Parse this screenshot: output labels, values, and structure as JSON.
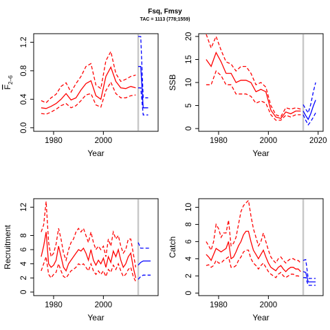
{
  "title": "Fsq, Fmsy",
  "subtitle": "TAC = 1113 (778;1559)",
  "chart_data": [
    {
      "type": "line",
      "xlabel": "Year",
      "ylabel_main": "F",
      "ylabel_sub": "2–6",
      "xlim": [
        1972,
        2022
      ],
      "ylim": [
        -0.05,
        1.32
      ],
      "xticks": [
        "1980",
        "2000"
      ],
      "yticks": [
        "0.0",
        "0.4",
        "0.8",
        "1.2"
      ],
      "vline_year": 2014,
      "colors": {
        "historical": "#ff0000",
        "projection": "#0000ff",
        "vline": "#c8c8c8"
      },
      "x": [
        1975,
        1977,
        1979,
        1981,
        1983,
        1985,
        1987,
        1989,
        1991,
        1993,
        1995,
        1997,
        1999,
        2001,
        2003,
        2005,
        2007,
        2009,
        2011,
        2013
      ],
      "median": [
        0.28,
        0.27,
        0.3,
        0.34,
        0.4,
        0.48,
        0.39,
        0.42,
        0.53,
        0.62,
        0.66,
        0.45,
        0.4,
        0.72,
        0.85,
        0.65,
        0.56,
        0.55,
        0.58,
        0.56
      ],
      "upper": [
        0.38,
        0.35,
        0.42,
        0.47,
        0.58,
        0.63,
        0.5,
        0.62,
        0.72,
        0.86,
        0.9,
        0.6,
        0.55,
        0.94,
        1.07,
        0.76,
        0.65,
        0.68,
        0.72,
        0.74
      ],
      "lower": [
        0.2,
        0.19,
        0.22,
        0.26,
        0.31,
        0.34,
        0.28,
        0.31,
        0.38,
        0.46,
        0.48,
        0.32,
        0.29,
        0.52,
        0.64,
        0.48,
        0.42,
        0.42,
        0.45,
        0.46
      ],
      "proj_x": [
        2014,
        2015,
        2016,
        2017,
        2018
      ],
      "proj_median": [
        0.86,
        0.86,
        0.28,
        0.28,
        0.28
      ],
      "proj_upper": [
        1.28,
        1.28,
        0.42,
        0.42,
        0.42
      ],
      "proj_lower": [
        0.56,
        0.56,
        0.18,
        0.18,
        0.18
      ]
    },
    {
      "type": "line",
      "xlabel": "Year",
      "ylabel": "SSB",
      "xlim": [
        1972,
        2022
      ],
      "ylim": [
        -0.6,
        20.6
      ],
      "xticks": [
        "1980",
        "2000",
        "2020"
      ],
      "yticks": [
        "0",
        "5",
        "10",
        "15",
        "20"
      ],
      "vline_year": 2014,
      "colors": {
        "historical": "#ff0000",
        "projection": "#0000ff",
        "vline": "#c8c8c8"
      },
      "x": [
        1975,
        1977,
        1979,
        1981,
        1983,
        1985,
        1987,
        1989,
        1991,
        1993,
        1995,
        1997,
        1999,
        2001,
        2003,
        2005,
        2007,
        2009,
        2011,
        2013
      ],
      "median": [
        15.0,
        13.5,
        16.5,
        14.5,
        12.0,
        12.0,
        10.0,
        10.5,
        10.5,
        10.0,
        8.0,
        8.5,
        8.0,
        4.0,
        2.5,
        2.2,
        3.6,
        3.2,
        3.8,
        3.8
      ],
      "upper": [
        20.5,
        17.5,
        20.0,
        17.0,
        14.5,
        14.0,
        12.5,
        13.5,
        13.5,
        12.0,
        9.5,
        10.0,
        9.0,
        5.0,
        3.0,
        2.6,
        4.5,
        4.2,
        4.5,
        4.2
      ],
      "lower": [
        9.5,
        9.5,
        12.5,
        11.5,
        9.5,
        9.5,
        7.5,
        7.5,
        7.5,
        7.0,
        5.5,
        6.0,
        5.5,
        3.0,
        1.8,
        1.8,
        2.9,
        2.5,
        3.0,
        3.0
      ],
      "proj_x": [
        2014,
        2015,
        2016,
        2017,
        2018,
        2019
      ],
      "proj_median": [
        3.8,
        2.8,
        2.0,
        3.2,
        4.8,
        6.2
      ],
      "proj_upper": [
        5.2,
        4.2,
        3.4,
        5.2,
        7.8,
        10.0
      ],
      "proj_lower": [
        3.0,
        1.8,
        0.8,
        1.5,
        2.4,
        3.4
      ]
    },
    {
      "type": "line",
      "xlabel": "Year",
      "ylabel": "Recruitment",
      "xlim": [
        1972,
        2022
      ],
      "ylim": [
        -0.5,
        13.2
      ],
      "xticks": [
        "1980",
        "2000"
      ],
      "yticks": [
        "0",
        "2",
        "4",
        "6",
        "8",
        "12"
      ],
      "vline_year": 2014,
      "colors": {
        "historical": "#ff0000",
        "projection": "#0000ff",
        "vline": "#c8c8c8"
      },
      "x": [
        1975,
        1976,
        1977,
        1978,
        1979,
        1980,
        1981,
        1982,
        1983,
        1984,
        1985,
        1986,
        1987,
        1988,
        1989,
        1990,
        1991,
        1992,
        1993,
        1994,
        1995,
        1996,
        1997,
        1998,
        1999,
        2000,
        2001,
        2002,
        2003,
        2004,
        2005,
        2006,
        2007,
        2008,
        2009,
        2010,
        2011,
        2012,
        2013
      ],
      "median": [
        5.0,
        6.5,
        8.5,
        4.0,
        3.5,
        3.8,
        4.5,
        6.5,
        5.0,
        3.5,
        3.0,
        4.0,
        4.5,
        5.0,
        5.5,
        6.0,
        5.8,
        6.2,
        5.5,
        4.5,
        6.0,
        4.5,
        3.8,
        4.5,
        4.0,
        4.8,
        3.5,
        5.0,
        4.2,
        5.8,
        5.0,
        6.0,
        4.5,
        3.5,
        4.0,
        5.0,
        5.5,
        3.5,
        2.0
      ],
      "upper": [
        8.5,
        9.5,
        12.8,
        7.0,
        5.0,
        5.5,
        6.8,
        9.0,
        7.5,
        5.5,
        4.5,
        6.0,
        7.0,
        7.5,
        8.5,
        9.0,
        8.5,
        9.0,
        8.0,
        7.0,
        8.5,
        7.0,
        6.0,
        6.5,
        6.0,
        6.5,
        5.0,
        7.5,
        6.5,
        8.5,
        7.5,
        8.0,
        6.5,
        5.5,
        6.0,
        7.5,
        7.5,
        5.5,
        3.5
      ],
      "lower": [
        3.0,
        4.0,
        5.0,
        2.5,
        2.0,
        2.5,
        2.8,
        4.0,
        3.0,
        2.2,
        2.0,
        2.5,
        3.0,
        3.2,
        3.5,
        4.0,
        3.8,
        4.0,
        3.5,
        3.0,
        4.0,
        3.0,
        2.5,
        3.0,
        2.5,
        3.0,
        2.2,
        3.2,
        2.8,
        3.8,
        3.2,
        4.0,
        3.0,
        2.2,
        2.5,
        3.2,
        3.5,
        2.2,
        1.5
      ],
      "proj_x": [
        2014,
        2015,
        2016,
        2017,
        2018,
        2019
      ],
      "proj_median": [
        3.8,
        4.2,
        4.4,
        4.4,
        4.4,
        4.4
      ],
      "proj_upper": [
        7.0,
        6.2,
        6.2,
        6.2,
        6.2,
        6.2
      ],
      "proj_lower": [
        1.8,
        2.2,
        2.4,
        2.4,
        2.4,
        2.4
      ]
    },
    {
      "type": "line",
      "xlabel": "Year",
      "ylabel": "Catch",
      "xlim": [
        1972,
        2022
      ],
      "ylim": [
        -0.3,
        11.0
      ],
      "xticks": [
        "1980",
        "2000"
      ],
      "yticks": [
        "0",
        "2",
        "4",
        "6",
        "8",
        "10"
      ],
      "vline_year": 2014,
      "colors": {
        "historical": "#ff0000",
        "projection": "#0000ff",
        "vline": "#c8c8c8"
      },
      "x": [
        1975,
        1976,
        1977,
        1978,
        1979,
        1980,
        1981,
        1982,
        1983,
        1984,
        1985,
        1986,
        1987,
        1988,
        1989,
        1990,
        1991,
        1992,
        1993,
        1994,
        1995,
        1996,
        1997,
        1998,
        1999,
        2000,
        2001,
        2002,
        2003,
        2004,
        2005,
        2006,
        2007,
        2008,
        2009,
        2010,
        2011,
        2012,
        2013
      ],
      "median": [
        4.5,
        4.2,
        3.8,
        4.5,
        5.2,
        5.0,
        4.8,
        5.0,
        5.2,
        6.0,
        4.0,
        4.2,
        4.8,
        5.5,
        6.0,
        6.8,
        7.2,
        7.2,
        6.0,
        5.0,
        4.5,
        4.0,
        4.5,
        5.0,
        4.2,
        3.5,
        3.0,
        2.8,
        2.6,
        3.0,
        3.2,
        2.8,
        2.5,
        2.8,
        3.0,
        3.0,
        2.8,
        2.8,
        2.5
      ],
      "upper": [
        6.0,
        5.5,
        5.0,
        6.0,
        8.0,
        7.5,
        6.5,
        7.0,
        7.0,
        8.5,
        5.5,
        5.8,
        6.5,
        8.0,
        9.5,
        10.2,
        10.5,
        10.8,
        9.0,
        7.5,
        6.5,
        5.5,
        6.0,
        7.0,
        6.0,
        5.0,
        4.2,
        3.8,
        3.5,
        4.0,
        4.2,
        3.8,
        3.5,
        3.8,
        4.0,
        4.0,
        3.8,
        3.8,
        3.5
      ],
      "lower": [
        3.2,
        3.3,
        3.0,
        3.2,
        3.8,
        3.5,
        3.5,
        3.8,
        4.0,
        4.2,
        3.0,
        3.0,
        3.2,
        3.8,
        4.2,
        4.8,
        5.0,
        5.0,
        4.0,
        3.5,
        3.2,
        2.8,
        3.2,
        3.5,
        3.0,
        2.5,
        2.2,
        2.0,
        1.8,
        2.2,
        2.4,
        2.0,
        1.8,
        2.0,
        2.2,
        2.2,
        2.0,
        2.0,
        1.8
      ],
      "proj_x": [
        2014,
        2015,
        2016,
        2017,
        2018,
        2019
      ],
      "proj_median": [
        2.5,
        2.4,
        1.3,
        1.3,
        1.3,
        1.3
      ],
      "proj_upper": [
        3.8,
        3.9,
        1.7,
        1.7,
        1.7,
        1.7
      ],
      "proj_lower": [
        1.8,
        1.8,
        0.9,
        0.9,
        0.9,
        0.9
      ]
    }
  ]
}
